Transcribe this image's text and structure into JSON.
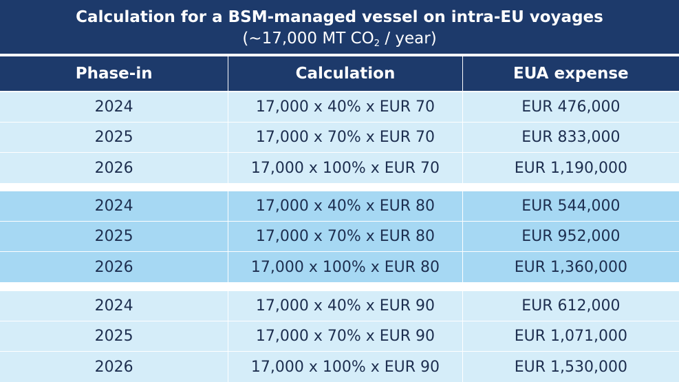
{
  "title": {
    "line1": "Calculation for a BSM-managed vessel on intra-EU voyages",
    "line2_prefix": "(~17,000 MT CO",
    "line2_sub": "2",
    "line2_suffix": " / year)"
  },
  "columns": [
    "Phase-in",
    "Calculation",
    "EUA expense"
  ],
  "groups": [
    {
      "rows": [
        {
          "phase": "2024",
          "calculation": "17,000 x 40% x EUR 70",
          "expense": "EUR 476,000"
        },
        {
          "phase": "2025",
          "calculation": "17,000 x 70% x EUR 70",
          "expense": "EUR 833,000"
        },
        {
          "phase": "2026",
          "calculation": "17,000 x 100% x EUR 70",
          "expense": "EUR 1,190,000"
        }
      ]
    },
    {
      "rows": [
        {
          "phase": "2024",
          "calculation": "17,000 x 40% x EUR 80",
          "expense": "EUR 544,000"
        },
        {
          "phase": "2025",
          "calculation": "17,000 x 70% x EUR 80",
          "expense": "EUR 952,000"
        },
        {
          "phase": "2026",
          "calculation": "17,000 x 100% x EUR 80",
          "expense": "EUR 1,360,000"
        }
      ]
    },
    {
      "rows": [
        {
          "phase": "2024",
          "calculation": "17,000 x 40% x EUR 90",
          "expense": "EUR 612,000"
        },
        {
          "phase": "2025",
          "calculation": "17,000 x 70% x EUR 90",
          "expense": "EUR 1,071,000"
        },
        {
          "phase": "2026",
          "calculation": "17,000 x 100% x EUR 90",
          "expense": "EUR 1,530,000"
        }
      ]
    }
  ],
  "colors": {
    "header_navy": "#1d3a6b",
    "row_light_blue": "#d5edf9",
    "row_mid_blue": "#a6d8f3",
    "body_text": "#1d2e4f"
  }
}
